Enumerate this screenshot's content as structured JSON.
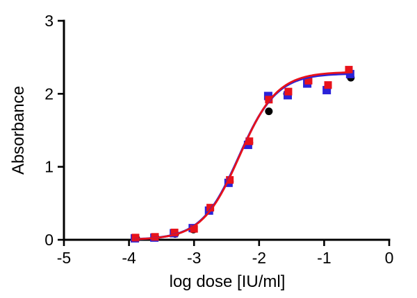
{
  "chart_data": {
    "type": "scatter",
    "title": "",
    "xlabel": "log dose [IU/ml]",
    "ylabel": "Absorbance",
    "xlim": [
      -5,
      0
    ],
    "ylim": [
      0,
      3
    ],
    "x_ticks": [
      -5,
      -4,
      -3,
      -2,
      -1,
      0
    ],
    "y_ticks": [
      0,
      1,
      2,
      3
    ],
    "grid": false,
    "legend": "none",
    "background_color": "#ffffff",
    "axis_color": "#000000",
    "series": [
      {
        "name": "black-circles",
        "marker": "circle",
        "color": "#000000",
        "size": 11,
        "x": [
          -3.89,
          -3.59,
          -3.29,
          -3.01,
          -2.75,
          -2.45,
          -2.15,
          -1.85,
          -1.57,
          -1.25,
          -0.95,
          -0.59
        ],
        "y": [
          0.02,
          0.03,
          0.08,
          0.14,
          0.42,
          0.8,
          1.33,
          1.76,
          2.0,
          2.16,
          2.08,
          2.22
        ]
      },
      {
        "name": "blue-squares",
        "marker": "square",
        "color": "#2a22d8",
        "size": 12,
        "x": [
          -3.91,
          -3.61,
          -3.31,
          -3.02,
          -2.77,
          -2.47,
          -2.17,
          -1.86,
          -1.56,
          -1.26,
          -0.96,
          -0.6
        ],
        "y": [
          0.02,
          0.03,
          0.09,
          0.16,
          0.4,
          0.78,
          1.3,
          1.97,
          1.98,
          2.14,
          2.05,
          2.27
        ]
      },
      {
        "name": "red-squares",
        "marker": "square",
        "color": "#e8121a",
        "size": 11,
        "x": [
          -3.9,
          -3.6,
          -3.3,
          -3.0,
          -2.75,
          -2.45,
          -2.15,
          -1.85,
          -1.55,
          -1.24,
          -0.94,
          -0.62
        ],
        "y": [
          0.03,
          0.04,
          0.1,
          0.15,
          0.44,
          0.82,
          1.35,
          1.92,
          2.03,
          2.18,
          2.12,
          2.33
        ]
      }
    ],
    "fit_curves": [
      {
        "name": "blue-4pl-fit",
        "color": "#2a22d8",
        "width": 3.2,
        "model": "4PL",
        "bottom": 0.0,
        "top": 2.28,
        "logEC50": -2.31,
        "hillslope": 1.5,
        "x_range": [
          -3.9,
          -0.58
        ]
      },
      {
        "name": "red-4pl-fit",
        "color": "#e8121a",
        "width": 2.8,
        "model": "4PL",
        "bottom": 0.0,
        "top": 2.3,
        "logEC50": -2.3,
        "hillslope": 1.5,
        "x_range": [
          -3.9,
          -0.58
        ]
      }
    ]
  }
}
